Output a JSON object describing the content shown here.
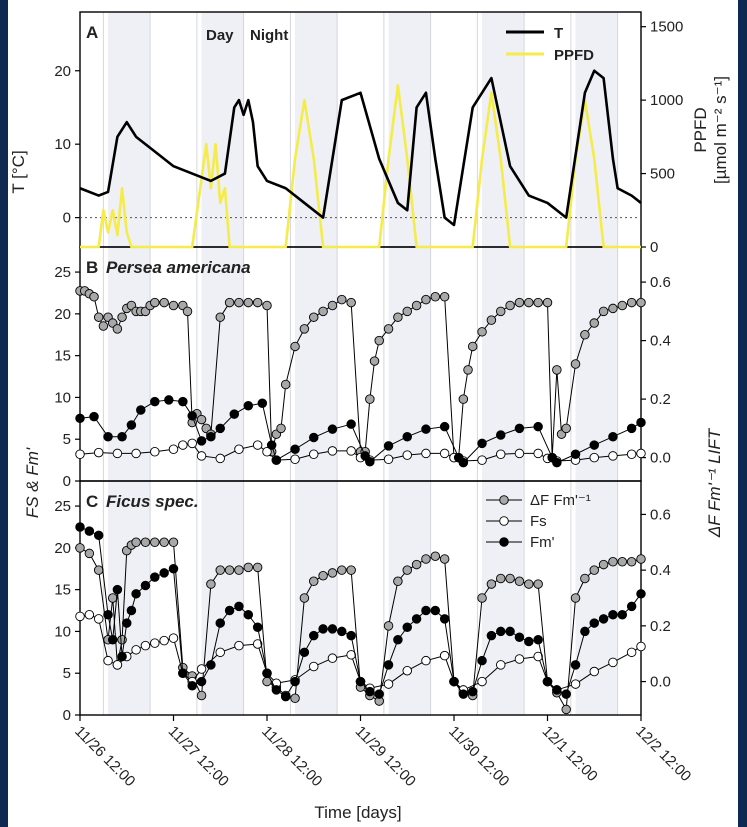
{
  "chart_data": [
    {
      "panel_letter": "A",
      "type": "line",
      "y_label": "T [°C]",
      "y2_label_line1": "PPFD",
      "y2_label_line2": "[µmol m⁻² s⁻¹]",
      "ylim": [
        -4,
        28
      ],
      "y_ticks": [
        "0",
        "10",
        "20"
      ],
      "y2lim": [
        0,
        1600
      ],
      "y2_ticks": [
        "0",
        "500",
        "1000",
        "1500"
      ],
      "day_label": "Day",
      "night_label": "Night",
      "legend_placement": "top-right",
      "series": [
        {
          "name": "T",
          "color": "#000000",
          "axis": "left",
          "x": [
            0,
            0.2,
            0.3,
            0.4,
            0.5,
            0.6,
            0.8,
            1.0,
            1.2,
            1.4,
            1.55,
            1.65,
            1.7,
            1.75,
            1.8,
            1.85,
            1.9,
            2.0,
            2.2,
            2.4,
            2.6,
            2.8,
            3.0,
            3.2,
            3.4,
            3.5,
            3.6,
            3.7,
            3.8,
            3.9,
            4.0,
            4.2,
            4.4,
            4.6,
            4.8,
            5.0,
            5.2,
            5.4,
            5.5,
            5.6,
            5.7,
            5.75,
            5.9,
            6.0
          ],
          "y": [
            4,
            3,
            3.5,
            11,
            13,
            11,
            9,
            7,
            6,
            5,
            6,
            15,
            16,
            14,
            16,
            13,
            7,
            5,
            4,
            2,
            0,
            16,
            17,
            8,
            2,
            1,
            15,
            17,
            8,
            0,
            -1,
            15,
            19,
            7,
            3,
            2,
            0,
            17,
            20,
            19,
            8,
            4,
            3,
            2
          ]
        },
        {
          "name": "PPFD",
          "color": "#f5eb4a",
          "axis": "right",
          "x": [
            0,
            0.2,
            0.25,
            0.3,
            0.35,
            0.4,
            0.45,
            0.5,
            0.55,
            0.6,
            1.2,
            1.35,
            1.4,
            1.45,
            1.5,
            1.55,
            1.6,
            1.7,
            2.0,
            2.2,
            2.3,
            2.4,
            2.5,
            2.6,
            2.7,
            3.0,
            3.2,
            3.3,
            3.4,
            3.5,
            3.6,
            3.7,
            4.0,
            4.2,
            4.3,
            4.4,
            4.5,
            4.6,
            4.7,
            5.0,
            5.2,
            5.3,
            5.4,
            5.5,
            5.6,
            5.7,
            6.0
          ],
          "y": [
            0,
            0,
            250,
            100,
            250,
            80,
            400,
            100,
            0,
            0,
            0,
            700,
            400,
            700,
            300,
            400,
            0,
            0,
            0,
            0,
            600,
            1000,
            600,
            0,
            0,
            0,
            0,
            600,
            1100,
            600,
            0,
            0,
            0,
            0,
            600,
            1050,
            600,
            0,
            0,
            0,
            0,
            600,
            1000,
            600,
            0,
            0,
            0
          ]
        }
      ]
    },
    {
      "panel_letter": "B",
      "title": "Persea americana",
      "type": "scatter",
      "ylim": [
        0,
        28
      ],
      "y_ticks": [
        "0",
        "5",
        "10",
        "15",
        "20",
        "25"
      ],
      "y2lim": [
        -0.08,
        0.72
      ],
      "y2_ticks": [
        "0.0",
        "0.2",
        "0.4",
        "0.6"
      ],
      "series": [
        {
          "name": "ΔF Fm'⁻¹",
          "color": "#a8a8a8",
          "axis": "right",
          "x": [
            0,
            0.05,
            0.1,
            0.15,
            0.2,
            0.25,
            0.3,
            0.35,
            0.4,
            0.45,
            0.5,
            0.55,
            0.6,
            0.65,
            0.7,
            0.75,
            0.8,
            0.9,
            1.0,
            1.1,
            1.15,
            1.2,
            1.25,
            1.3,
            1.35,
            1.4,
            1.5,
            1.6,
            1.7,
            1.8,
            1.9,
            2.0,
            2.05,
            2.1,
            2.15,
            2.2,
            2.3,
            2.4,
            2.5,
            2.6,
            2.7,
            2.8,
            2.9,
            3.0,
            3.05,
            3.1,
            3.15,
            3.2,
            3.3,
            3.4,
            3.5,
            3.6,
            3.7,
            3.8,
            3.9,
            4.0,
            4.05,
            4.1,
            4.15,
            4.2,
            4.3,
            4.4,
            4.5,
            4.6,
            4.7,
            4.8,
            4.9,
            5.0,
            5.05,
            5.1,
            5.15,
            5.2,
            5.3,
            5.4,
            5.5,
            5.6,
            5.7,
            5.8,
            5.9,
            6.0
          ],
          "y": [
            0.57,
            0.57,
            0.56,
            0.55,
            0.48,
            0.45,
            0.48,
            0.46,
            0.44,
            0.48,
            0.51,
            0.52,
            0.5,
            0.5,
            0.5,
            0.52,
            0.53,
            0.53,
            0.52,
            0.52,
            0.5,
            0.12,
            0.15,
            0.13,
            0.1,
            0.08,
            0.48,
            0.53,
            0.53,
            0.53,
            0.53,
            0.52,
            0.02,
            0.08,
            0.1,
            0.25,
            0.38,
            0.44,
            0.48,
            0.5,
            0.52,
            0.54,
            0.53,
            0.02,
            0.02,
            0.2,
            0.33,
            0.4,
            0.44,
            0.48,
            0.5,
            0.52,
            0.54,
            0.55,
            0.55,
            0.0,
            0.0,
            0.2,
            0.3,
            0.38,
            0.43,
            0.47,
            0.5,
            0.52,
            0.53,
            0.53,
            0.53,
            0.53,
            0.0,
            0.3,
            0.08,
            0.1,
            0.32,
            0.42,
            0.46,
            0.5,
            0.51,
            0.52,
            0.53,
            0.53
          ]
        },
        {
          "name": "Fs",
          "color": "#ffffff",
          "axis": "left",
          "x": [
            0,
            0.2,
            0.4,
            0.6,
            0.8,
            1.0,
            1.1,
            1.2,
            1.3,
            1.5,
            1.7,
            1.9,
            2.0,
            2.1,
            2.3,
            2.5,
            2.7,
            2.9,
            3.0,
            3.1,
            3.3,
            3.5,
            3.7,
            3.9,
            4.0,
            4.1,
            4.3,
            4.5,
            4.7,
            4.9,
            5.0,
            5.1,
            5.3,
            5.5,
            5.7,
            5.9,
            6.0
          ],
          "y": [
            3.2,
            3.4,
            3.3,
            3.3,
            3.5,
            3.8,
            4.3,
            4.5,
            3.0,
            2.7,
            3.8,
            4.3,
            3.5,
            2.5,
            2.6,
            3.2,
            3.6,
            3.6,
            2.8,
            2.5,
            2.6,
            3.1,
            3.3,
            3.3,
            2.8,
            2.4,
            2.5,
            3.2,
            3.3,
            3.3,
            2.7,
            2.4,
            2.5,
            2.8,
            3.0,
            3.2,
            3.3
          ]
        },
        {
          "name": "Fm'",
          "color": "#000000",
          "axis": "left",
          "x": [
            0,
            0.15,
            0.3,
            0.45,
            0.55,
            0.65,
            0.8,
            0.95,
            1.1,
            1.2,
            1.3,
            1.4,
            1.5,
            1.65,
            1.8,
            1.95,
            2.05,
            2.1,
            2.3,
            2.5,
            2.7,
            2.9,
            3.05,
            3.1,
            3.3,
            3.5,
            3.7,
            3.9,
            4.05,
            4.1,
            4.3,
            4.5,
            4.7,
            4.9,
            5.05,
            5.1,
            5.3,
            5.5,
            5.7,
            5.9,
            6.0
          ],
          "y": [
            7.5,
            7.7,
            5.3,
            5.3,
            6.7,
            8.5,
            9.5,
            9.7,
            9.5,
            7.8,
            4.8,
            5.3,
            6.3,
            8.0,
            9.0,
            9.3,
            4.3,
            2.5,
            3.8,
            5.2,
            6.2,
            6.8,
            3.0,
            2.3,
            4.2,
            5.3,
            6.2,
            6.5,
            2.8,
            2.2,
            4.5,
            5.5,
            6.3,
            6.5,
            2.8,
            2.2,
            3.2,
            4.3,
            5.3,
            6.3,
            7.0
          ]
        }
      ]
    },
    {
      "panel_letter": "C",
      "title": "Ficus spec.",
      "type": "scatter",
      "ylim": [
        0,
        28
      ],
      "y_ticks": [
        "0",
        "5",
        "10",
        "15",
        "20",
        "25"
      ],
      "y2lim": [
        -0.12,
        0.72
      ],
      "y2_ticks": [
        "0.0",
        "0.2",
        "0.4",
        "0.6"
      ],
      "x_label": "Time [days]",
      "x_ticks": [
        "11/26 12:00",
        "11/27 12:00",
        "11/28 12:00",
        "11/29 12:00",
        "11/30 12:00",
        "12/1 12:00",
        "12/2 12:00"
      ],
      "legend_placement": "top-right",
      "y_label_left": "FS & Fm'",
      "y_label_right": "ΔF Fm'⁻¹ LIFT",
      "series": [
        {
          "name": "ΔF Fm'⁻¹",
          "color": "#a8a8a8",
          "axis": "right",
          "x": [
            0,
            0.1,
            0.2,
            0.3,
            0.35,
            0.4,
            0.45,
            0.5,
            0.55,
            0.6,
            0.7,
            0.8,
            0.9,
            1.0,
            1.1,
            1.2,
            1.3,
            1.4,
            1.5,
            1.6,
            1.7,
            1.8,
            1.9,
            2.0,
            2.1,
            2.2,
            2.3,
            2.4,
            2.5,
            2.6,
            2.7,
            2.8,
            2.9,
            3.0,
            3.1,
            3.2,
            3.3,
            3.4,
            3.5,
            3.6,
            3.7,
            3.8,
            3.9,
            4.0,
            4.1,
            4.2,
            4.3,
            4.4,
            4.5,
            4.6,
            4.7,
            4.8,
            4.9,
            5.0,
            5.1,
            5.2,
            5.3,
            5.4,
            5.5,
            5.6,
            5.7,
            5.8,
            5.9,
            6.0
          ],
          "y": [
            0.48,
            0.46,
            0.4,
            0.15,
            0.3,
            0.06,
            0.15,
            0.47,
            0.49,
            0.5,
            0.5,
            0.5,
            0.5,
            0.5,
            0.05,
            0.02,
            -0.05,
            0.35,
            0.4,
            0.4,
            0.4,
            0.41,
            0.41,
            0.0,
            -0.02,
            -0.05,
            -0.06,
            0.3,
            0.36,
            0.38,
            0.39,
            0.4,
            0.4,
            -0.02,
            -0.05,
            -0.07,
            0.2,
            0.36,
            0.4,
            0.42,
            0.44,
            0.45,
            0.44,
            0.0,
            -0.04,
            -0.05,
            0.3,
            0.35,
            0.37,
            0.37,
            0.36,
            0.35,
            0.35,
            0.0,
            -0.04,
            -0.1,
            0.3,
            0.37,
            0.4,
            0.42,
            0.43,
            0.43,
            0.43,
            0.44
          ]
        },
        {
          "name": "Fs",
          "color": "#ffffff",
          "axis": "left",
          "x": [
            0,
            0.1,
            0.2,
            0.3,
            0.4,
            0.5,
            0.6,
            0.7,
            0.8,
            0.9,
            1.0,
            1.1,
            1.2,
            1.3,
            1.5,
            1.7,
            1.9,
            2.0,
            2.1,
            2.3,
            2.5,
            2.7,
            2.9,
            3.0,
            3.1,
            3.3,
            3.5,
            3.7,
            3.9,
            4.0,
            4.1,
            4.3,
            4.5,
            4.7,
            4.9,
            5.0,
            5.1,
            5.3,
            5.5,
            5.7,
            5.9,
            6.0
          ],
          "y": [
            11.8,
            12.0,
            11.5,
            6.5,
            6.0,
            7.0,
            7.8,
            8.3,
            8.6,
            8.9,
            9.2,
            5.0,
            4.0,
            5.5,
            7.5,
            8.3,
            8.5,
            5.0,
            3.8,
            4.2,
            5.8,
            6.8,
            7.2,
            4.0,
            3.2,
            3.7,
            5.3,
            6.5,
            7.1,
            4.0,
            3.0,
            4.0,
            6.0,
            6.7,
            7.0,
            4.0,
            3.0,
            3.7,
            5.2,
            6.3,
            7.5,
            8.2
          ]
        },
        {
          "name": "Fm'",
          "color": "#000000",
          "axis": "left",
          "x": [
            0,
            0.1,
            0.2,
            0.3,
            0.35,
            0.4,
            0.45,
            0.5,
            0.55,
            0.6,
            0.7,
            0.8,
            0.9,
            1.0,
            1.1,
            1.2,
            1.3,
            1.4,
            1.5,
            1.6,
            1.7,
            1.8,
            1.9,
            2.0,
            2.1,
            2.2,
            2.3,
            2.4,
            2.5,
            2.6,
            2.7,
            2.8,
            2.9,
            3.0,
            3.1,
            3.2,
            3.3,
            3.4,
            3.5,
            3.6,
            3.7,
            3.8,
            3.9,
            4.0,
            4.1,
            4.2,
            4.3,
            4.4,
            4.5,
            4.6,
            4.7,
            4.8,
            4.9,
            5.0,
            5.1,
            5.2,
            5.3,
            5.4,
            5.5,
            5.6,
            5.7,
            5.8,
            5.9,
            6.0
          ],
          "y": [
            22.5,
            22.0,
            21.5,
            12.0,
            9.0,
            15.0,
            7.0,
            11.0,
            12.5,
            14.5,
            15.5,
            16.5,
            17.0,
            17.5,
            5.0,
            3.5,
            4.0,
            6.0,
            11.0,
            12.5,
            13.0,
            12.0,
            10.5,
            5.0,
            3.0,
            2.2,
            4.0,
            7.5,
            9.5,
            10.3,
            10.3,
            10.0,
            9.5,
            4.0,
            2.8,
            2.5,
            6.0,
            9.0,
            10.5,
            11.5,
            12.5,
            12.5,
            11.5,
            4.0,
            2.5,
            2.8,
            6.5,
            9.5,
            10.0,
            10.0,
            9.3,
            8.8,
            9.0,
            4.0,
            3.0,
            2.5,
            6.0,
            10.0,
            11.0,
            11.5,
            12.0,
            12.0,
            13.0,
            14.5
          ]
        }
      ]
    }
  ]
}
